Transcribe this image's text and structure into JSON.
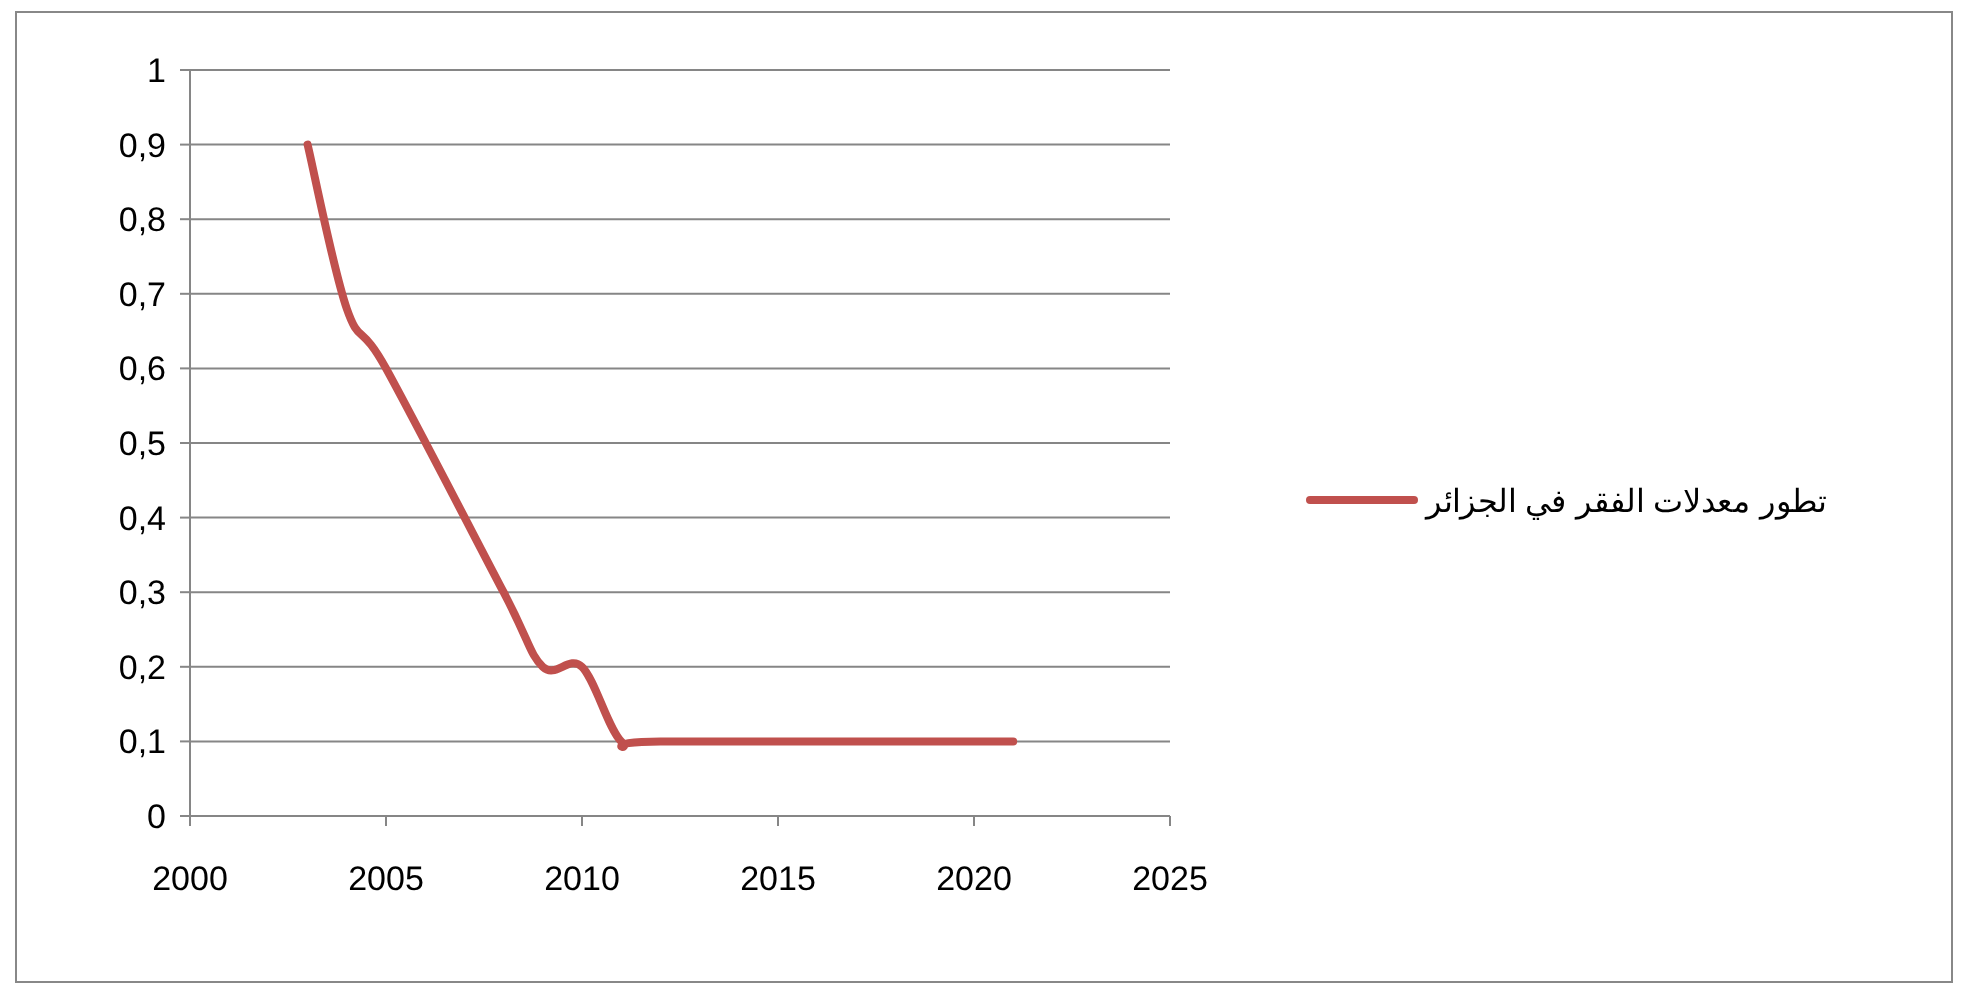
{
  "chart_data": {
    "type": "line",
    "x": [
      2003,
      2004,
      2005,
      2008,
      2009,
      2010,
      2011,
      2012,
      2021
    ],
    "series": [
      {
        "name": "تطور معدلات الفقر في الجزائر",
        "color": "#c0504d",
        "values": [
          0.9,
          0.68,
          0.6,
          0.3,
          0.2,
          0.2,
          0.1,
          0.1,
          0.1
        ]
      }
    ],
    "xlim": [
      2000,
      2025
    ],
    "xticks": [
      2000,
      2005,
      2010,
      2015,
      2020,
      2025
    ],
    "ylim": [
      0,
      1
    ],
    "yticks": [
      0,
      {
        "value": 0.1,
        "label": "0,1"
      },
      {
        "value": 0.2,
        "label": "0,2"
      },
      {
        "value": 0.3,
        "label": "0,3"
      },
      {
        "value": 0.4,
        "label": "0,4"
      },
      {
        "value": 0.5,
        "label": "0,5"
      },
      {
        "value": 0.6,
        "label": "0,6"
      },
      {
        "value": 0.7,
        "label": "0,7"
      },
      {
        "value": 0.8,
        "label": "0,8"
      },
      {
        "value": 0.9,
        "label": "0,9"
      },
      1
    ],
    "grid": "y",
    "legend": "right",
    "marker": "none",
    "line_style": "solid"
  }
}
